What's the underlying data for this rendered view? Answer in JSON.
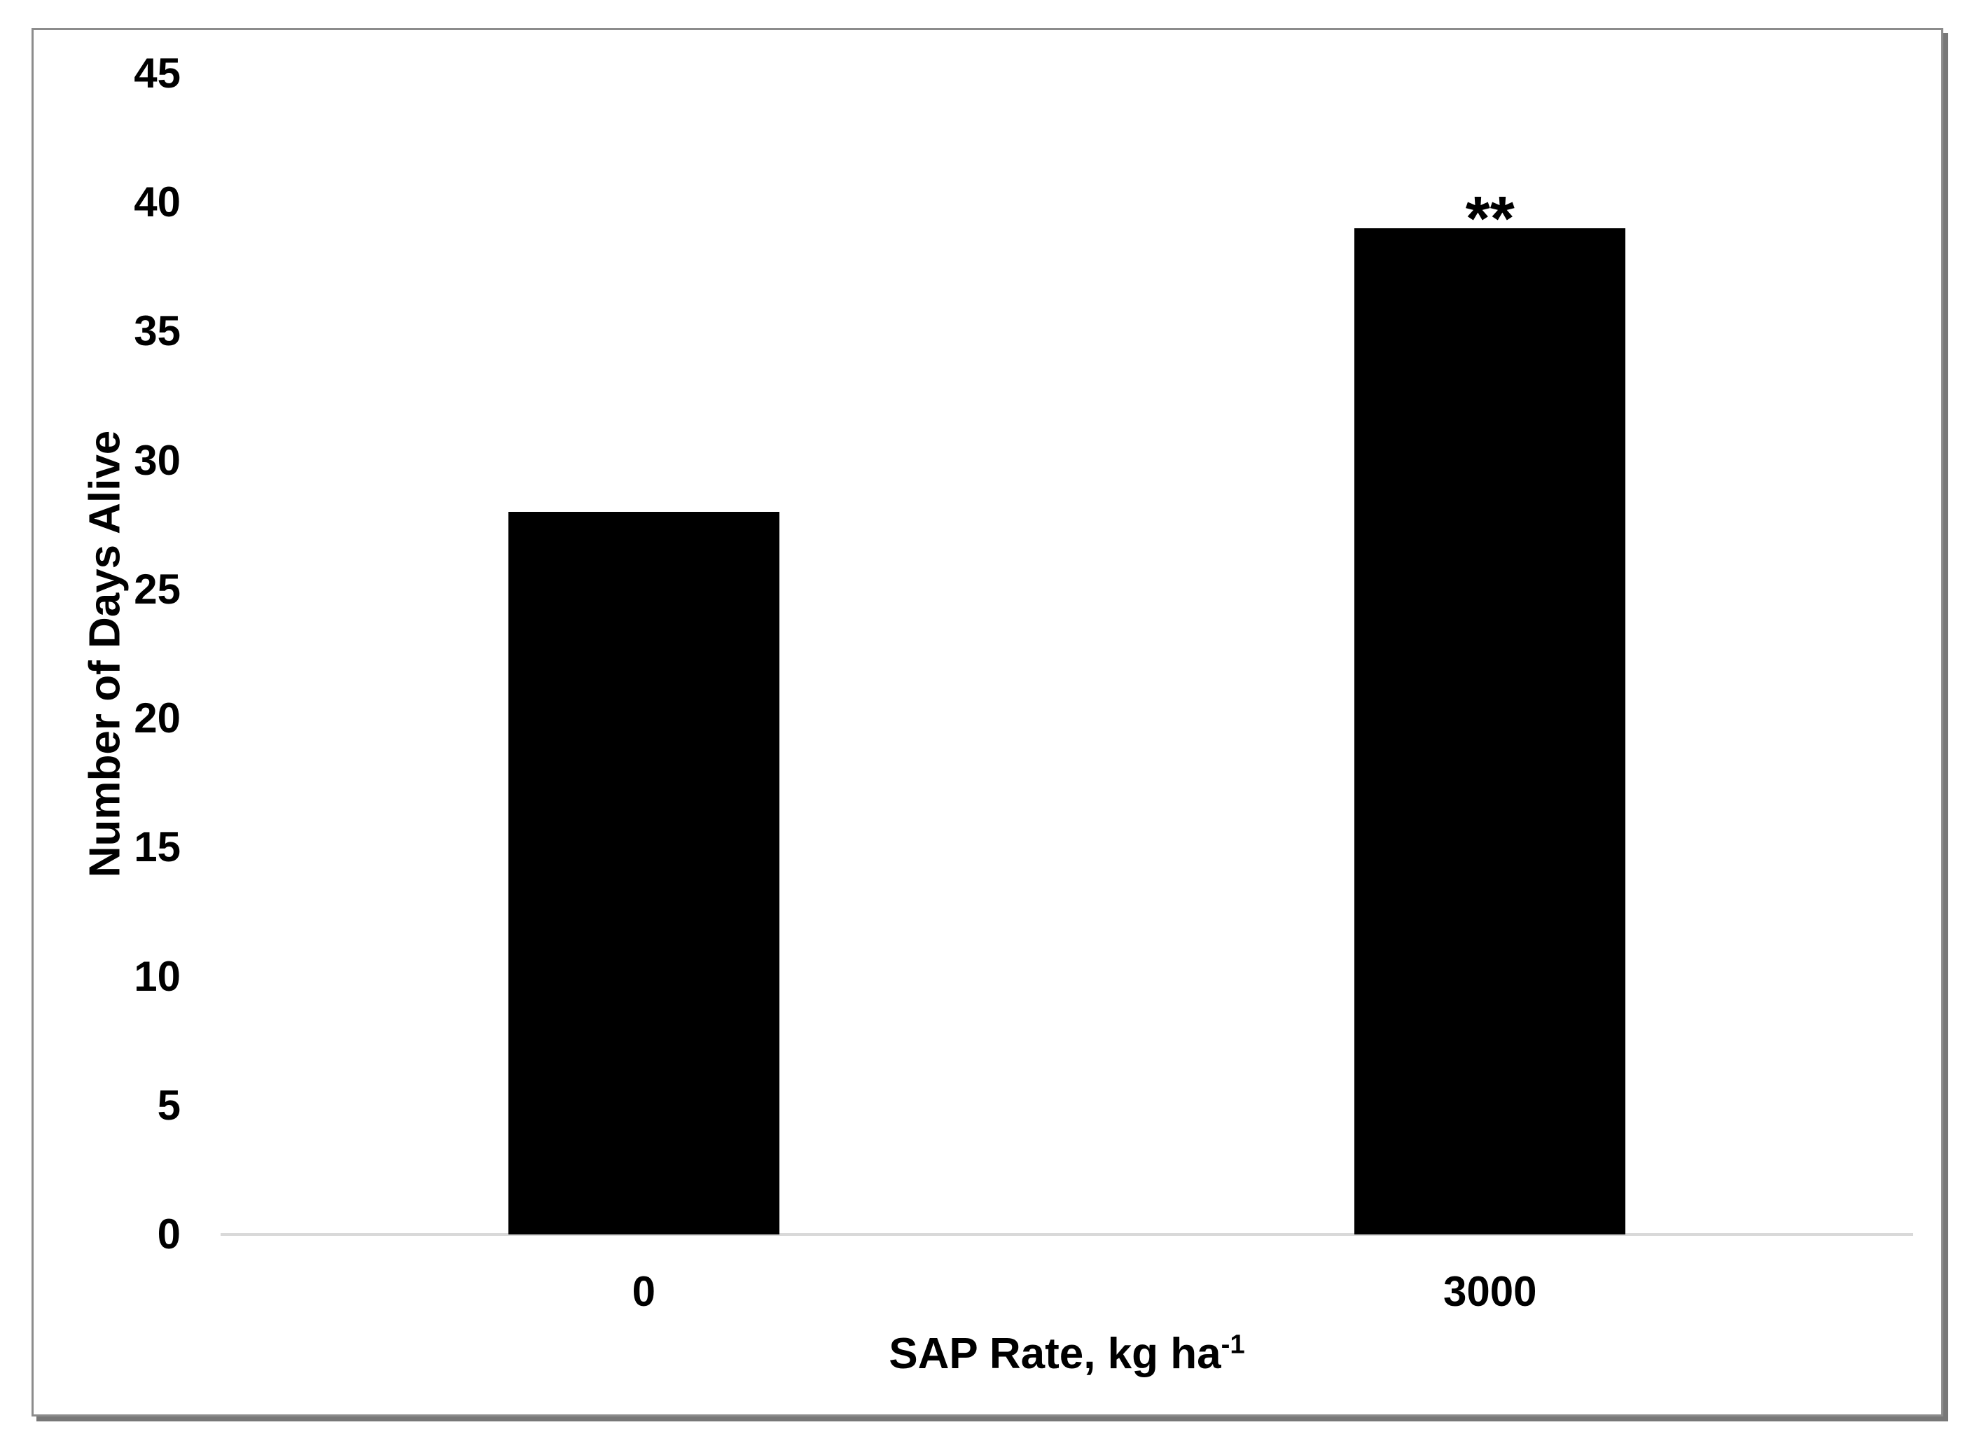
{
  "chart_data": {
    "type": "bar",
    "categories": [
      "0",
      "3000"
    ],
    "values": [
      28,
      39
    ],
    "title": "",
    "xlabel": "SAP Rate, kg ha⁻¹",
    "xlabel_main": "SAP Rate, kg ha",
    "xlabel_sup": "-1",
    "ylabel": "Number of Days Alive",
    "ylim": [
      0,
      45
    ],
    "yticks": [
      0,
      5,
      10,
      15,
      20,
      25,
      30,
      35,
      40,
      45
    ],
    "grid": false,
    "legend": "none",
    "bar_color": "#000000",
    "axis_line_color": "#d9d9d9",
    "text_color": "#000000",
    "frame_border_color": "#8c8c8c",
    "annotations": [
      {
        "category": "3000",
        "text": "**"
      }
    ]
  }
}
